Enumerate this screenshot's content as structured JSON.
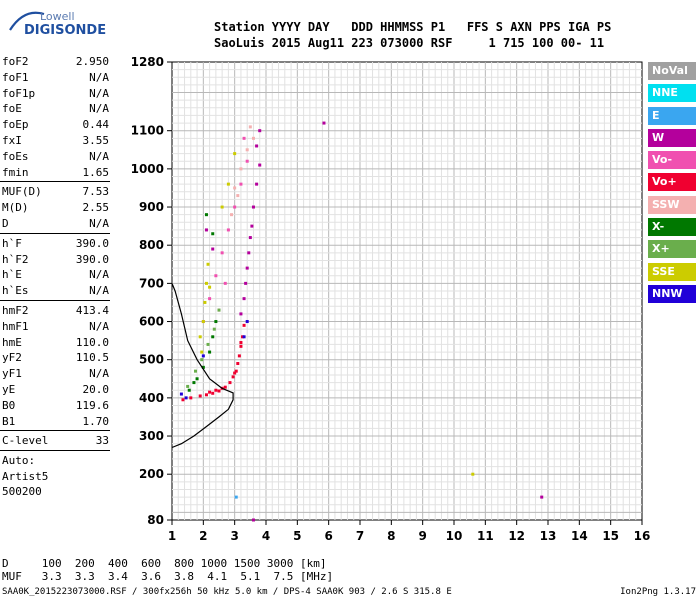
{
  "logo": {
    "top": "Lowell",
    "main": "DIGISONDE"
  },
  "header": {
    "line1": "Station YYYY DAY   DDD HHMMSS P1   FFS S AXN PPS IGA PS",
    "line2": "SaoLuis 2015 Aug11 223 073000 RSF     1 715 100 00- 11"
  },
  "params": [
    {
      "label": "foF2",
      "value": "2.950"
    },
    {
      "label": "foF1",
      "value": "N/A"
    },
    {
      "label": "foF1p",
      "value": "N/A"
    },
    {
      "label": "foE",
      "value": "N/A"
    },
    {
      "label": "foEp",
      "value": "0.44"
    },
    {
      "label": "fxI",
      "value": "3.55"
    },
    {
      "label": "foEs",
      "value": "N/A"
    },
    {
      "label": "fmin",
      "value": "1.65"
    },
    {
      "sep": true
    },
    {
      "label": "MUF(D)",
      "value": "7.53"
    },
    {
      "label": "M(D)",
      "value": "2.55"
    },
    {
      "label": "D",
      "value": "N/A"
    },
    {
      "sep": true
    },
    {
      "label": "h`F",
      "value": "390.0"
    },
    {
      "label": "h`F2",
      "value": "390.0"
    },
    {
      "label": "h`E",
      "value": "N/A"
    },
    {
      "label": "h`Es",
      "value": "N/A"
    },
    {
      "sep": true
    },
    {
      "label": "hmF2",
      "value": "413.4"
    },
    {
      "label": "hmF1",
      "value": "N/A"
    },
    {
      "label": "hmE",
      "value": "110.0"
    },
    {
      "label": "yF2",
      "value": "110.5"
    },
    {
      "label": "yF1",
      "value": "N/A"
    },
    {
      "label": "yE",
      "value": "20.0"
    },
    {
      "label": "B0",
      "value": "119.6"
    },
    {
      "label": "B1",
      "value": "1.70"
    },
    {
      "sep": true
    },
    {
      "label": "C-level",
      "value": "33"
    },
    {
      "sep": true
    },
    {
      "text": "Auto:"
    },
    {
      "text": "Artist5"
    },
    {
      "text": "500200"
    }
  ],
  "legend": [
    {
      "label": "NoVal",
      "color": "#a0a0a0"
    },
    {
      "label": "NNE",
      "color": "#00e0f0"
    },
    {
      "label": "E",
      "color": "#3aa6f0"
    },
    {
      "label": "W",
      "color": "#b4009c"
    },
    {
      "label": "Vo-",
      "color": "#f050b0"
    },
    {
      "label": "Vo+",
      "color": "#f00030"
    },
    {
      "label": "SSW",
      "color": "#f4b0b0"
    },
    {
      "label": "X-",
      "color": "#007800"
    },
    {
      "label": "X+",
      "color": "#6aae4c"
    },
    {
      "label": "SSE",
      "color": "#cccc00"
    },
    {
      "label": "NNW",
      "color": "#2000d8"
    }
  ],
  "footer": {
    "line1": "D     100  200  400  600  800 1000 1500 3000 [km]",
    "line2": "MUF   3.3  3.3  3.4  3.6  3.8  4.1  5.1  7.5 [MHz]",
    "line3": "SAA0K_2015223073000.RSF / 300fx256h 50 kHz 5.0 km / DPS-4 SAA0K 903 / 2.6 S 315.8 E",
    "right": "Ion2Png 1.3.17"
  },
  "chart_data": {
    "type": "scatter",
    "title": "",
    "xlabel": "",
    "ylabel": "",
    "xlim": [
      1,
      16
    ],
    "ylim": [
      80,
      1280
    ],
    "x_ticks": [
      "1",
      "2",
      "3",
      "4",
      "5",
      "6",
      "7",
      "8",
      "9",
      "10",
      "11",
      "12",
      "13",
      "14",
      "15",
      "16"
    ],
    "y_ticks": [
      "80",
      "200",
      "300",
      "400",
      "500",
      "600",
      "700",
      "800",
      "900",
      "1000",
      "1100",
      "1280"
    ],
    "grid": true,
    "series": [
      {
        "name": "Vo+",
        "color": "#f00030",
        "points": [
          [
            1.35,
            395
          ],
          [
            1.6,
            400
          ],
          [
            1.9,
            405
          ],
          [
            2.1,
            408
          ],
          [
            2.3,
            412
          ],
          [
            2.5,
            418
          ],
          [
            2.7,
            428
          ],
          [
            2.85,
            440
          ],
          [
            2.95,
            455
          ],
          [
            3.05,
            470
          ],
          [
            3.1,
            490
          ],
          [
            3.15,
            510
          ],
          [
            3.2,
            535
          ],
          [
            3.25,
            560
          ],
          [
            3.3,
            590
          ],
          [
            2.2,
            415
          ],
          [
            2.6,
            425
          ],
          [
            3.0,
            465
          ],
          [
            3.2,
            545
          ],
          [
            2.4,
            420
          ]
        ]
      },
      {
        "name": "W",
        "color": "#b4009c",
        "points": [
          [
            3.2,
            620
          ],
          [
            3.3,
            660
          ],
          [
            3.35,
            700
          ],
          [
            3.4,
            740
          ],
          [
            3.45,
            780
          ],
          [
            3.5,
            820
          ],
          [
            3.55,
            850
          ],
          [
            3.6,
            900
          ],
          [
            3.7,
            960
          ],
          [
            3.8,
            1010
          ],
          [
            3.7,
            1060
          ],
          [
            3.8,
            1100
          ],
          [
            5.85,
            1120
          ],
          [
            12.8,
            140
          ],
          [
            3.6,
            80
          ],
          [
            2.1,
            840
          ],
          [
            2.3,
            790
          ]
        ]
      },
      {
        "name": "Vo-",
        "color": "#f050b0",
        "points": [
          [
            2.0,
            600
          ],
          [
            2.2,
            660
          ],
          [
            2.4,
            720
          ],
          [
            2.6,
            780
          ],
          [
            2.8,
            840
          ],
          [
            3.0,
            900
          ],
          [
            3.2,
            960
          ],
          [
            3.4,
            1020
          ],
          [
            3.3,
            1080
          ],
          [
            2.5,
            630
          ],
          [
            2.7,
            700
          ]
        ]
      },
      {
        "name": "SSW",
        "color": "#f4b0b0",
        "points": [
          [
            3.0,
            950
          ],
          [
            3.2,
            1000
          ],
          [
            3.4,
            1050
          ],
          [
            3.6,
            1080
          ],
          [
            2.9,
            880
          ],
          [
            3.1,
            930
          ],
          [
            3.5,
            1110
          ]
        ]
      },
      {
        "name": "SSE",
        "color": "#cccc00",
        "points": [
          [
            1.9,
            560
          ],
          [
            2.0,
            600
          ],
          [
            2.05,
            650
          ],
          [
            2.1,
            700
          ],
          [
            2.15,
            750
          ],
          [
            1.95,
            520
          ],
          [
            2.6,
            900
          ],
          [
            2.8,
            960
          ],
          [
            3.0,
            1040
          ],
          [
            10.6,
            200
          ],
          [
            2.2,
            690
          ]
        ]
      },
      {
        "name": "X-",
        "color": "#007800",
        "points": [
          [
            1.55,
            420
          ],
          [
            1.8,
            450
          ],
          [
            2.0,
            480
          ],
          [
            2.2,
            520
          ],
          [
            2.3,
            560
          ],
          [
            2.4,
            600
          ],
          [
            2.1,
            880
          ],
          [
            2.3,
            830
          ],
          [
            1.7,
            440
          ]
        ]
      },
      {
        "name": "X+",
        "color": "#6aae4c",
        "points": [
          [
            1.5,
            430
          ],
          [
            1.75,
            470
          ],
          [
            1.95,
            500
          ],
          [
            2.15,
            540
          ],
          [
            2.35,
            580
          ],
          [
            2.5,
            630
          ]
        ]
      },
      {
        "name": "NNW",
        "color": "#2000d8",
        "points": [
          [
            1.3,
            410
          ],
          [
            1.45,
            400
          ],
          [
            2.0,
            510
          ],
          [
            3.3,
            560
          ],
          [
            3.4,
            600
          ]
        ]
      },
      {
        "name": "E",
        "color": "#3aa6f0",
        "points": [
          [
            3.05,
            140
          ]
        ]
      }
    ],
    "profile": [
      [
        1.0,
        270
      ],
      [
        1.3,
        280
      ],
      [
        1.7,
        300
      ],
      [
        2.1,
        325
      ],
      [
        2.5,
        350
      ],
      [
        2.8,
        370
      ],
      [
        2.95,
        395
      ],
      [
        2.95,
        413
      ],
      [
        2.6,
        425
      ],
      [
        2.2,
        450
      ],
      [
        1.8,
        500
      ],
      [
        1.5,
        550
      ],
      [
        1.3,
        620
      ],
      [
        1.1,
        680
      ],
      [
        1.0,
        700
      ]
    ]
  }
}
